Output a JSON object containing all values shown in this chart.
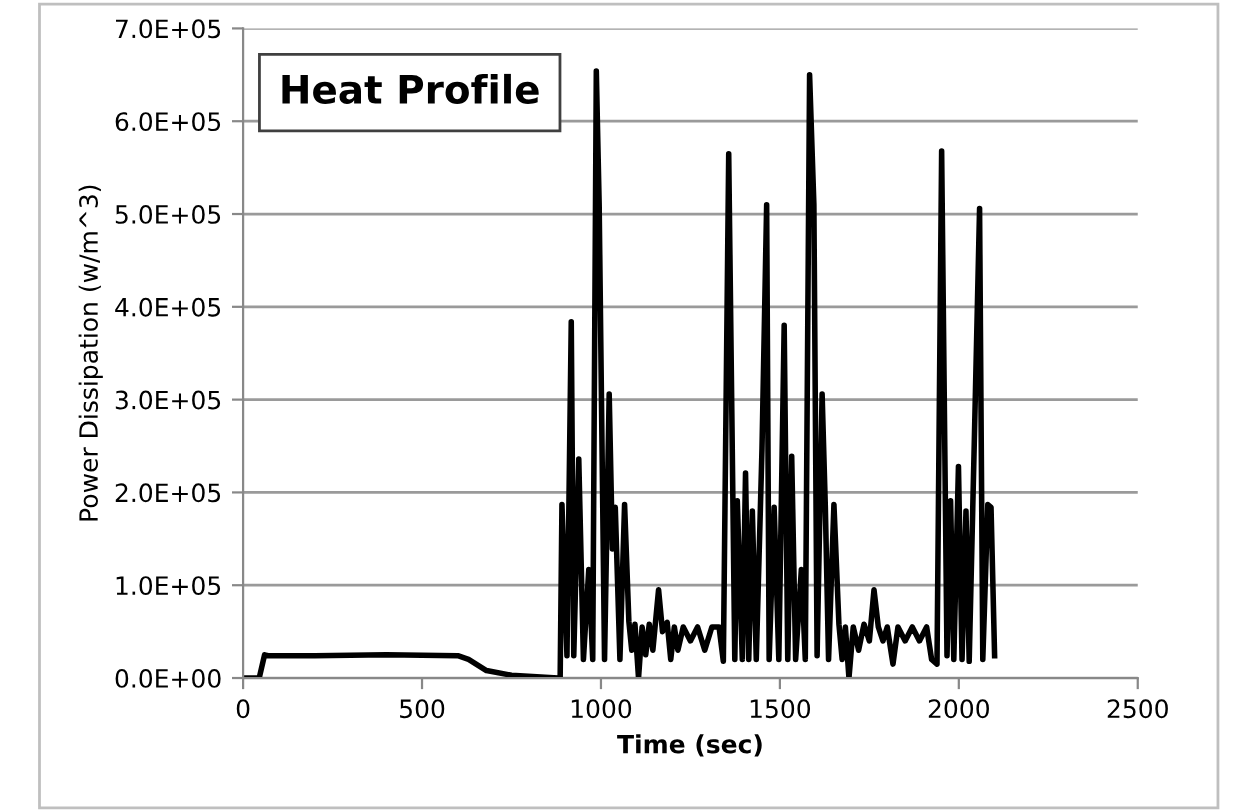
{
  "chart_data": {
    "type": "line",
    "title": "Heat Profile",
    "xlabel": "Time (sec)",
    "ylabel": "Power Dissipation (w/m^3)",
    "x": [
      0,
      45,
      60,
      70,
      200,
      400,
      600,
      630,
      680,
      750,
      880,
      886,
      891,
      905,
      917,
      924,
      938,
      951,
      966,
      977,
      987,
      995,
      1010,
      1023,
      1032,
      1040,
      1053,
      1066,
      1078,
      1086,
      1095,
      1105,
      1115,
      1125,
      1135,
      1145,
      1161,
      1172,
      1185,
      1195,
      1205,
      1215,
      1230,
      1250,
      1270,
      1290,
      1310,
      1330,
      1342,
      1357,
      1374,
      1381,
      1395,
      1404,
      1413,
      1423,
      1434,
      1450,
      1463,
      1470,
      1484,
      1497,
      1512,
      1522,
      1533,
      1544,
      1560,
      1571,
      1583,
      1595,
      1604,
      1618,
      1627,
      1636,
      1651,
      1665,
      1674,
      1683,
      1693,
      1705,
      1720,
      1735,
      1750,
      1763,
      1775,
      1788,
      1800,
      1816,
      1830,
      1850,
      1870,
      1890,
      1910,
      1924,
      1939,
      1952,
      1967,
      1977,
      1986,
      1999,
      2009,
      2020,
      2029,
      2043,
      2058,
      2067,
      2081,
      2090,
      2100
    ],
    "series": [
      {
        "color": "#000000",
        "values": [
          0,
          0,
          25000,
          24000,
          24000,
          25000,
          24000,
          20000,
          8000,
          3000,
          0,
          0,
          187000,
          24000,
          384000,
          24000,
          236000,
          20000,
          117000,
          20000,
          654000,
          510000,
          20000,
          306000,
          139000,
          184000,
          20000,
          187000,
          61000,
          30000,
          58000,
          0,
          55000,
          25000,
          58000,
          30000,
          95000,
          50000,
          60000,
          20000,
          55000,
          30000,
          55000,
          40000,
          55000,
          30000,
          55000,
          55000,
          18000,
          565000,
          20000,
          191000,
          20000,
          221000,
          20000,
          180000,
          20000,
          247000,
          510000,
          20000,
          184000,
          20000,
          380000,
          20000,
          239000,
          20000,
          117000,
          20000,
          650000,
          510000,
          24000,
          306000,
          184000,
          20000,
          187000,
          58000,
          20000,
          55000,
          0,
          55000,
          30000,
          58000,
          40000,
          95000,
          55000,
          40000,
          55000,
          15000,
          55000,
          40000,
          55000,
          40000,
          55000,
          20000,
          15000,
          568000,
          24000,
          191000,
          20000,
          228000,
          20000,
          180000,
          18000,
          250000,
          506000,
          20000,
          187000,
          184000,
          24000
        ]
      }
    ],
    "xlim": [
      0,
      2500
    ],
    "xticks": [
      0,
      500,
      1000,
      1500,
      2000,
      2500
    ],
    "ylim": [
      0,
      700000
    ],
    "yticks": [
      {
        "value": 0,
        "label": "0.0E+00"
      },
      {
        "value": 100000,
        "label": "1.0E+05"
      },
      {
        "value": 200000,
        "label": "2.0E+05"
      },
      {
        "value": 300000,
        "label": "3.0E+05"
      },
      {
        "value": 400000,
        "label": "4.0E+05"
      },
      {
        "value": 500000,
        "label": "5.0E+05"
      },
      {
        "value": 600000,
        "label": "6.0E+05"
      },
      {
        "value": 700000,
        "label": "7.0E+05"
      }
    ],
    "grid": "y",
    "marker": "none",
    "line_style": "solid",
    "legend": false
  }
}
